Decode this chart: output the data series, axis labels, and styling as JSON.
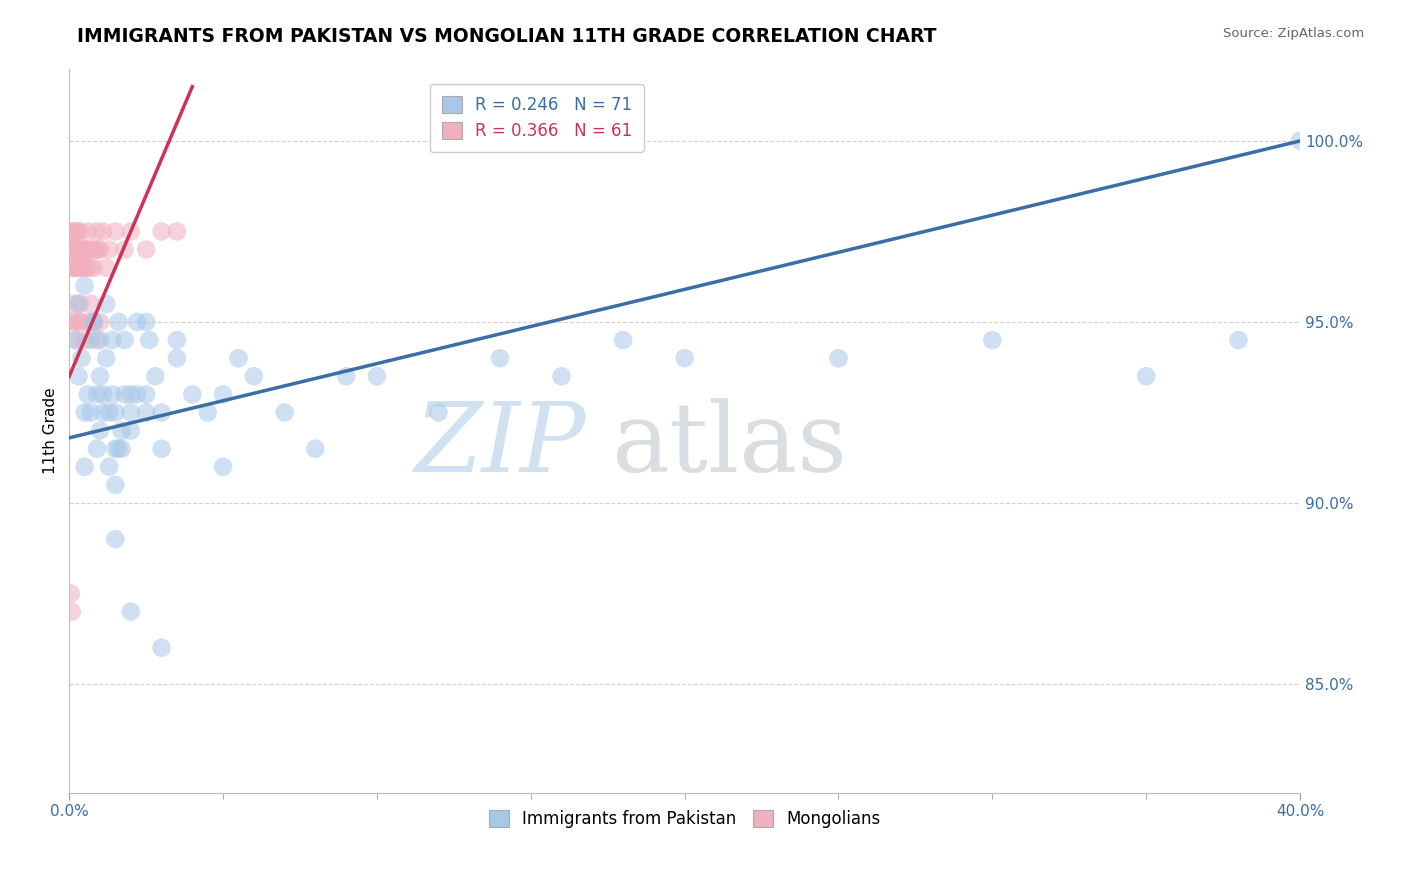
{
  "title": "IMMIGRANTS FROM PAKISTAN VS MONGOLIAN 11TH GRADE CORRELATION CHART",
  "source": "Source: ZipAtlas.com",
  "ylabel": "11th Grade",
  "legend1_r": "R = 0.246",
  "legend1_n": "N = 71",
  "legend2_r": "R = 0.366",
  "legend2_n": "N = 61",
  "blue_color": "#a8c8e8",
  "pink_color": "#f0b0c0",
  "blue_line_color": "#3a6ea5",
  "pink_line_color": "#cc3355",
  "xlim": [
    0.0,
    40.0
  ],
  "ylim": [
    82.0,
    102.0
  ],
  "yticks": [
    85.0,
    90.0,
    95.0,
    100.0
  ],
  "blue_x": [
    0.2,
    0.3,
    0.4,
    0.5,
    0.6,
    0.7,
    0.8,
    0.9,
    1.0,
    1.0,
    1.1,
    1.2,
    1.3,
    1.4,
    1.5,
    1.6,
    1.7,
    1.8,
    2.0,
    2.2,
    2.5,
    2.8,
    3.0,
    3.5,
    4.0,
    4.5,
    5.0,
    5.5,
    0.5,
    0.7,
    0.9,
    1.1,
    1.3,
    1.5,
    1.7,
    2.0,
    2.5,
    3.0,
    0.3,
    0.5,
    0.8,
    1.0,
    1.2,
    1.4,
    1.6,
    1.8,
    2.2,
    2.6,
    1.5,
    2.0,
    2.5,
    3.5,
    5.0,
    6.0,
    7.0,
    8.0,
    9.0,
    10.0,
    12.0,
    14.0,
    16.0,
    18.0,
    20.0,
    25.0,
    30.0,
    35.0,
    38.0,
    40.0,
    1.5,
    2.0,
    3.0
  ],
  "blue_y": [
    94.5,
    93.5,
    94.0,
    92.5,
    93.0,
    94.5,
    95.0,
    93.0,
    93.5,
    92.0,
    93.0,
    94.0,
    92.5,
    93.0,
    92.5,
    91.5,
    92.0,
    93.0,
    92.5,
    93.0,
    95.0,
    93.5,
    92.5,
    94.5,
    93.0,
    92.5,
    93.0,
    94.0,
    91.0,
    92.5,
    91.5,
    92.5,
    91.0,
    90.5,
    91.5,
    92.0,
    93.0,
    91.5,
    95.5,
    96.0,
    95.0,
    94.5,
    95.5,
    94.5,
    95.0,
    94.5,
    95.0,
    94.5,
    91.5,
    93.0,
    92.5,
    94.0,
    91.0,
    93.5,
    92.5,
    91.5,
    93.5,
    93.5,
    92.5,
    94.0,
    93.5,
    94.5,
    94.0,
    94.0,
    94.5,
    93.5,
    94.5,
    100.0,
    89.0,
    87.0,
    86.0
  ],
  "pink_x": [
    0.05,
    0.08,
    0.1,
    0.1,
    0.12,
    0.15,
    0.15,
    0.18,
    0.2,
    0.2,
    0.22,
    0.25,
    0.25,
    0.28,
    0.3,
    0.3,
    0.32,
    0.35,
    0.35,
    0.38,
    0.4,
    0.4,
    0.45,
    0.48,
    0.5,
    0.5,
    0.55,
    0.6,
    0.6,
    0.65,
    0.7,
    0.75,
    0.8,
    0.85,
    0.9,
    0.95,
    1.0,
    1.1,
    1.2,
    1.3,
    1.5,
    1.8,
    2.0,
    2.5,
    3.0,
    3.5,
    0.1,
    0.15,
    0.2,
    0.25,
    0.3,
    0.35,
    0.4,
    0.5,
    0.6,
    0.7,
    0.8,
    0.9,
    1.0,
    0.05,
    0.08
  ],
  "pink_y": [
    97.0,
    97.5,
    97.0,
    96.5,
    97.5,
    97.0,
    96.5,
    97.5,
    97.0,
    96.5,
    97.0,
    96.5,
    97.0,
    97.5,
    97.0,
    96.5,
    97.0,
    96.5,
    97.5,
    97.0,
    96.5,
    97.0,
    97.0,
    96.5,
    97.0,
    96.5,
    97.0,
    96.5,
    97.5,
    97.0,
    96.5,
    97.0,
    96.5,
    97.0,
    97.5,
    97.0,
    97.0,
    97.5,
    96.5,
    97.0,
    97.5,
    97.0,
    97.5,
    97.0,
    97.5,
    97.5,
    95.0,
    95.5,
    95.0,
    94.5,
    95.0,
    95.5,
    95.0,
    94.5,
    95.0,
    95.5,
    95.0,
    94.5,
    95.0,
    87.5,
    87.0
  ],
  "blue_line_x": [
    0.0,
    40.0
  ],
  "blue_line_y": [
    91.8,
    100.0
  ],
  "pink_line_x": [
    0.0,
    4.0
  ],
  "pink_line_y": [
    93.5,
    101.5
  ]
}
